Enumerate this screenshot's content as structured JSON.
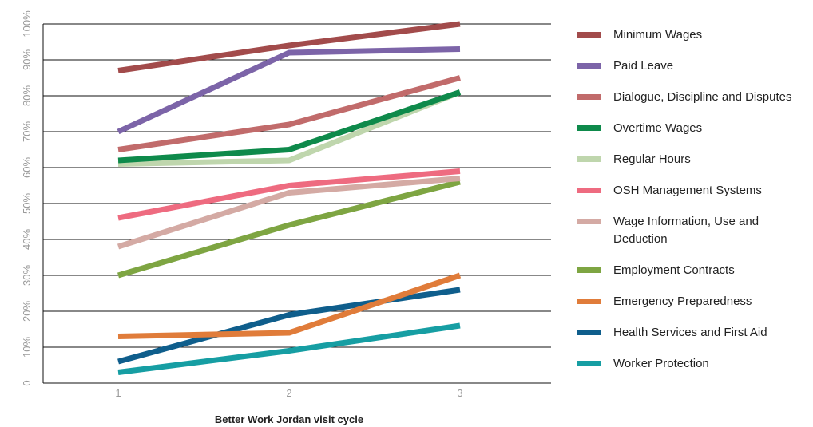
{
  "chart_data": {
    "type": "line",
    "title": "",
    "xlabel": "Better Work Jordan visit cycle",
    "ylabel": "",
    "x": [
      "1",
      "2",
      "3"
    ],
    "y_ticks": [
      "0",
      "10%",
      "20%",
      "30%",
      "40%",
      "50%",
      "60%",
      "70%",
      "80%",
      "90%",
      "100%"
    ],
    "ylim": [
      0,
      100
    ],
    "grid": "horizontal",
    "legend_position": "right",
    "series": [
      {
        "name": "Minimum Wages",
        "color": "#a24b4b",
        "values": [
          87,
          94,
          100
        ]
      },
      {
        "name": "Paid Leave",
        "color": "#7c64a8",
        "values": [
          70,
          92,
          93
        ]
      },
      {
        "name": "Dialogue, Discipline and Disputes",
        "color": "#c16b6b",
        "values": [
          65,
          72,
          85
        ]
      },
      {
        "name": "Overtime Wages",
        "color": "#0e8a4b",
        "values": [
          62,
          65,
          81
        ]
      },
      {
        "name": "Regular Hours",
        "color": "#bfd6ad",
        "values": [
          61,
          62,
          81
        ]
      },
      {
        "name": "OSH Management Systems",
        "color": "#ee6b80",
        "values": [
          46,
          55,
          59
        ]
      },
      {
        "name": "Wage Information, Use and Deduction",
        "label_lines": [
          "Wage Information, Use and",
          "Deduction"
        ],
        "color": "#d4aaa4",
        "values": [
          38,
          53,
          57
        ]
      },
      {
        "name": "Employment Contracts",
        "color": "#7ea542",
        "values": [
          30,
          44,
          56
        ]
      },
      {
        "name": "Emergency Preparedness",
        "color": "#e07c3a",
        "values": [
          13,
          14,
          30
        ]
      },
      {
        "name": "Health Services and First Aid",
        "color": "#0f5e8c",
        "values": [
          6,
          19,
          26
        ]
      },
      {
        "name": "Worker Protection",
        "color": "#169ea3",
        "values": [
          3,
          9,
          16
        ]
      }
    ]
  }
}
